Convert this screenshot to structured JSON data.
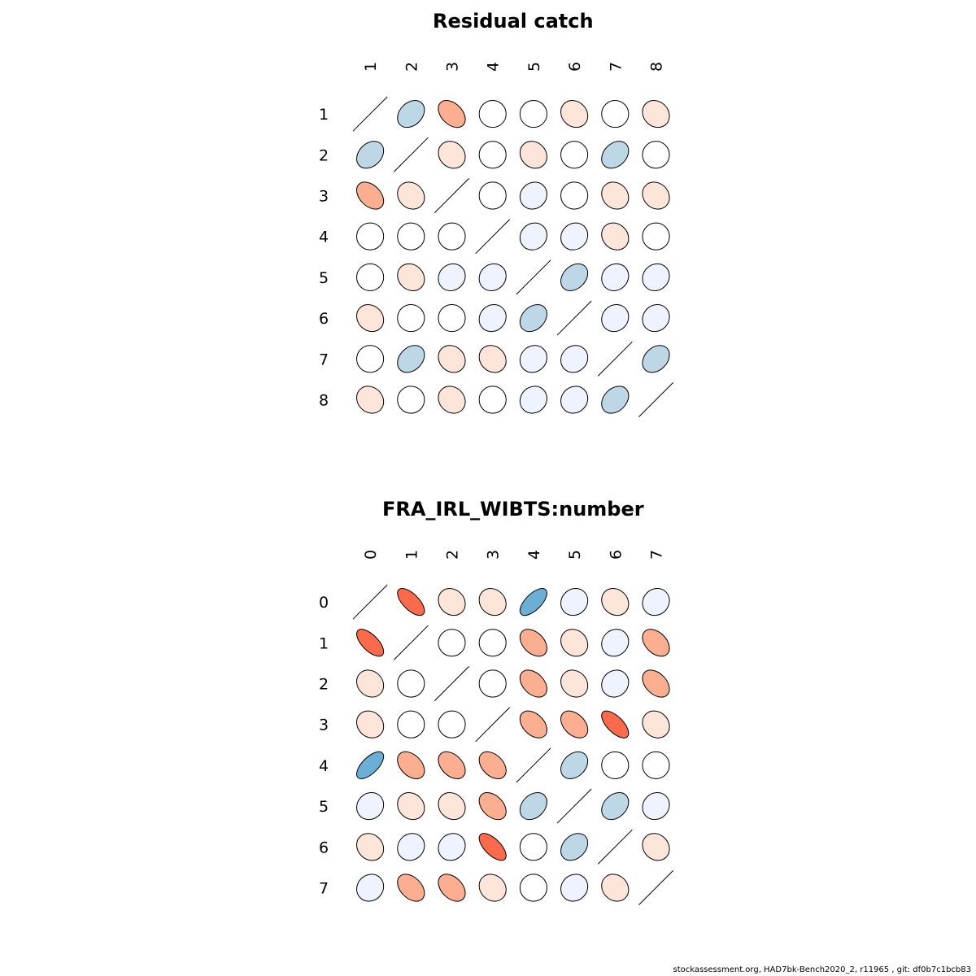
{
  "chart_data": [
    {
      "type": "heatmap",
      "title": "Residual catch",
      "labels": [
        "1",
        "2",
        "3",
        "4",
        "5",
        "6",
        "7",
        "8"
      ],
      "matrix": [
        [
          1.0,
          -0.3,
          0.4,
          0.0,
          0.0,
          0.15,
          0.0,
          0.15
        ],
        [
          -0.3,
          1.0,
          0.15,
          0.0,
          0.15,
          0.0,
          -0.3,
          0.0
        ],
        [
          0.4,
          0.15,
          1.0,
          0.0,
          -0.1,
          0.0,
          0.15,
          0.15
        ],
        [
          0.0,
          0.0,
          0.0,
          1.0,
          -0.1,
          -0.1,
          0.15,
          0.0
        ],
        [
          0.0,
          0.15,
          -0.1,
          -0.1,
          1.0,
          -0.3,
          -0.1,
          -0.1
        ],
        [
          0.15,
          0.0,
          0.0,
          -0.1,
          -0.3,
          1.0,
          -0.1,
          -0.1
        ],
        [
          0.0,
          -0.3,
          0.15,
          0.15,
          -0.1,
          -0.1,
          1.0,
          -0.3
        ],
        [
          0.15,
          0.0,
          0.15,
          0.0,
          -0.1,
          -0.1,
          -0.3,
          1.0
        ]
      ]
    },
    {
      "type": "heatmap",
      "title": "FRA_IRL_WIBTS:number",
      "labels": [
        "0",
        "1",
        "2",
        "3",
        "4",
        "5",
        "6",
        "7"
      ],
      "matrix": [
        [
          1.0,
          0.65,
          0.15,
          0.15,
          -0.65,
          -0.1,
          0.15,
          -0.1
        ],
        [
          0.65,
          1.0,
          0.0,
          0.0,
          0.4,
          0.15,
          -0.1,
          0.4
        ],
        [
          0.15,
          0.0,
          1.0,
          0.0,
          0.4,
          0.15,
          -0.1,
          0.4
        ],
        [
          0.15,
          0.0,
          0.0,
          1.0,
          0.4,
          0.4,
          0.65,
          0.15
        ],
        [
          -0.65,
          0.4,
          0.4,
          0.4,
          1.0,
          -0.3,
          0.0,
          0.0
        ],
        [
          -0.1,
          0.15,
          0.15,
          0.4,
          -0.3,
          1.0,
          -0.3,
          -0.1
        ],
        [
          0.15,
          -0.1,
          -0.1,
          0.65,
          0.0,
          -0.3,
          1.0,
          0.15
        ],
        [
          -0.1,
          0.4,
          0.4,
          0.15,
          0.0,
          -0.1,
          0.15,
          1.0
        ]
      ]
    }
  ],
  "colors": {
    "strong_positive": "#fb6a4a",
    "positive": "#fcae91",
    "weak_positive": "#fee5d9",
    "neutral": "#ffffff",
    "weak_negative": "#eff3ff",
    "negative": "#bdd7e7",
    "strong_negative": "#6baed6"
  },
  "footer": "stockassessment.org, HAD7bk-Bench2020_2, r11965 , git: df0b7c1bcb83"
}
